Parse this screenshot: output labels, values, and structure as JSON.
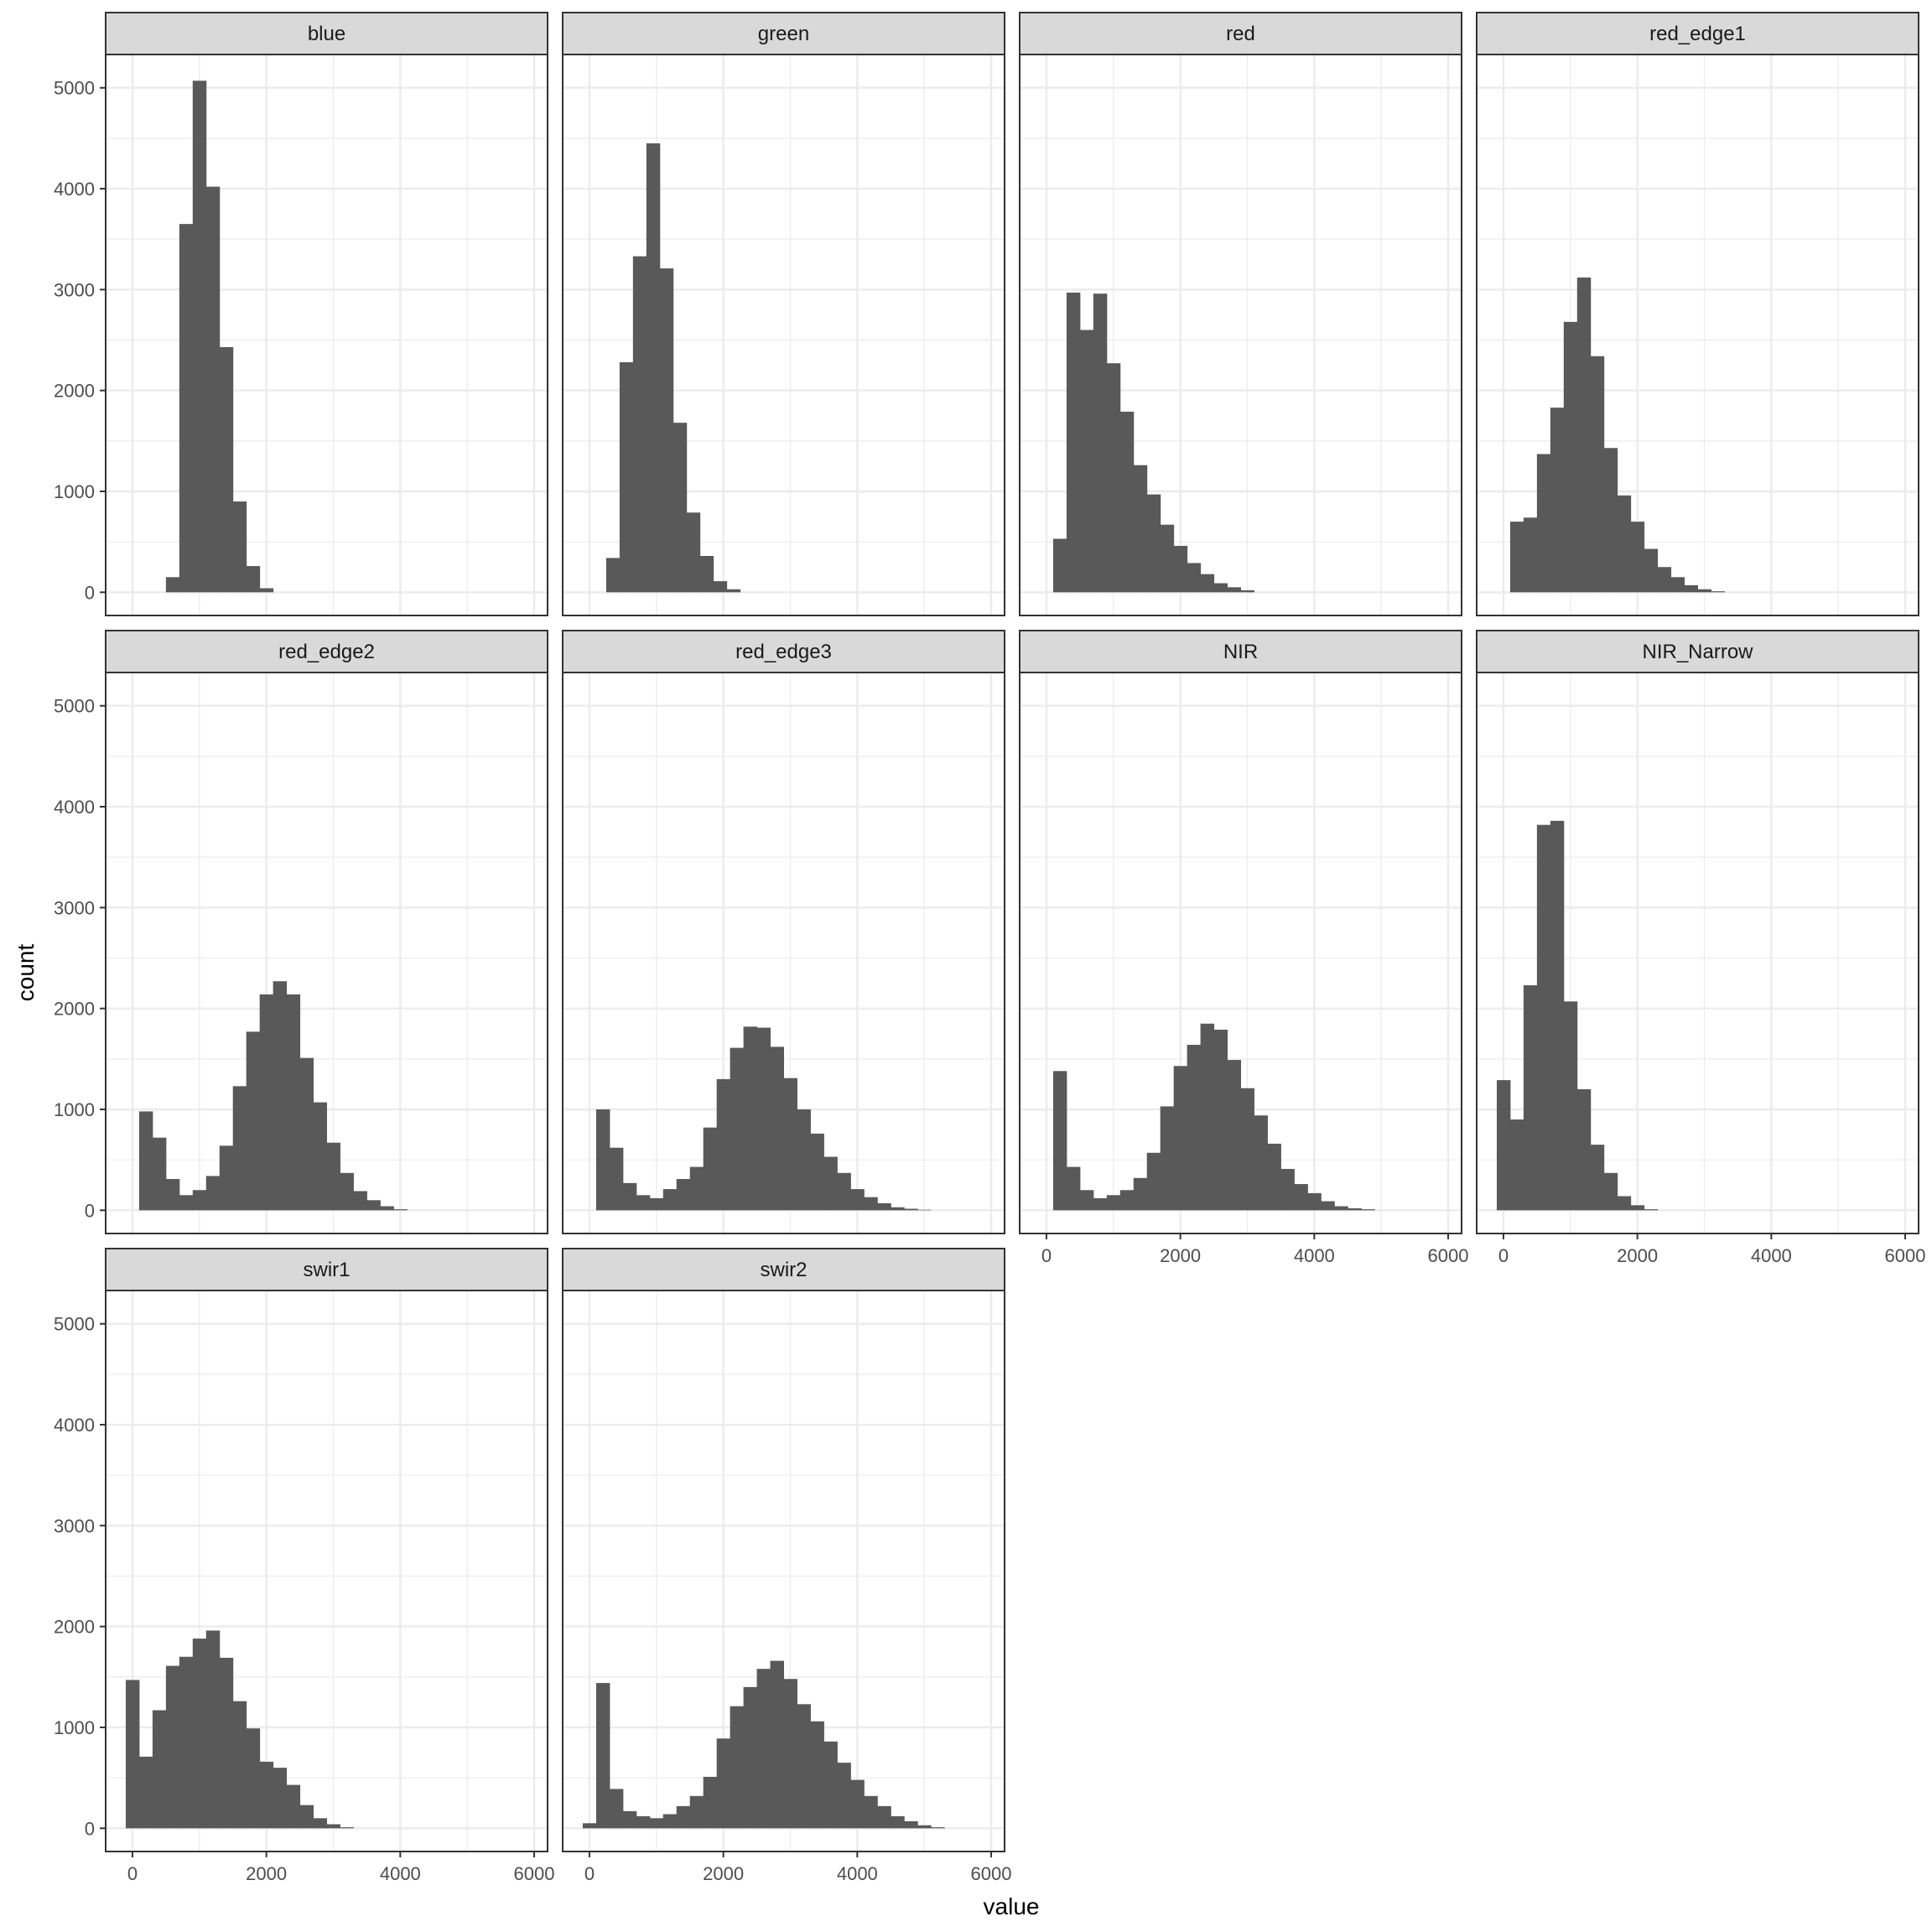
{
  "chart_data": {
    "type": "bar",
    "subtype": "faceted-histogram",
    "title": "",
    "xlabel": "value",
    "ylabel": "count",
    "xlim": [
      -400,
      6200
    ],
    "ylim": [
      -230,
      5330
    ],
    "x_ticks": [
      0,
      2000,
      4000,
      6000
    ],
    "y_ticks": [
      0,
      1000,
      2000,
      3000,
      4000,
      5000
    ],
    "grid": true,
    "bar_color": "#595959",
    "strip_color": "#d9d9d9",
    "panel_border_color": "#333333",
    "grid_color": "#ebebeb",
    "facet_layout": {
      "ncol": 4,
      "nrow": 3
    },
    "facets": [
      {
        "name": "blue",
        "x_start": 500,
        "bin_width": 200,
        "counts": [
          150,
          3650,
          5070,
          4020,
          2430,
          900,
          260,
          40
        ]
      },
      {
        "name": "green",
        "x_start": 250,
        "bin_width": 200,
        "counts": [
          340,
          2280,
          3330,
          4450,
          3210,
          1680,
          790,
          360,
          110,
          30
        ]
      },
      {
        "name": "red",
        "x_start": 100,
        "bin_width": 200,
        "counts": [
          530,
          2970,
          2600,
          2960,
          2270,
          1790,
          1260,
          970,
          670,
          460,
          290,
          180,
          90,
          50,
          20
        ]
      },
      {
        "name": "red_edge1",
        "x_start": 100,
        "bin_width": 200,
        "counts": [
          700,
          740,
          1370,
          1830,
          2680,
          3120,
          2340,
          1430,
          960,
          700,
          430,
          250,
          150,
          70,
          30,
          10
        ]
      },
      {
        "name": "red_edge2",
        "x_start": 100,
        "bin_width": 200,
        "counts": [
          980,
          720,
          310,
          150,
          200,
          340,
          640,
          1230,
          1770,
          2140,
          2270,
          2140,
          1510,
          1070,
          670,
          370,
          190,
          100,
          40,
          10
        ]
      },
      {
        "name": "red_edge3",
        "x_start": 100,
        "bin_width": 200,
        "counts": [
          1000,
          620,
          270,
          150,
          120,
          210,
          310,
          430,
          820,
          1300,
          1610,
          1820,
          1810,
          1620,
          1310,
          1000,
          760,
          530,
          370,
          210,
          130,
          70,
          30,
          15,
          5
        ]
      },
      {
        "name": "NIR",
        "x_start": 100,
        "bin_width": 200,
        "counts": [
          1380,
          430,
          200,
          120,
          150,
          200,
          320,
          570,
          1030,
          1430,
          1640,
          1850,
          1790,
          1490,
          1210,
          940,
          660,
          410,
          260,
          170,
          90,
          40,
          20,
          10
        ]
      },
      {
        "name": "NIR_Narrow",
        "x_start": -100,
        "bin_width": 200,
        "counts": [
          1290,
          900,
          2230,
          3820,
          3860,
          2070,
          1200,
          650,
          370,
          140,
          50,
          10
        ]
      },
      {
        "name": "swir1",
        "x_start": -100,
        "bin_width": 200,
        "counts": [
          1470,
          710,
          1170,
          1610,
          1700,
          1880,
          1960,
          1690,
          1260,
          990,
          660,
          600,
          430,
          230,
          100,
          40,
          10
        ]
      },
      {
        "name": "swir2",
        "x_start": -100,
        "bin_width": 200,
        "counts": [
          50,
          1440,
          390,
          170,
          120,
          100,
          140,
          220,
          320,
          510,
          890,
          1210,
          1400,
          1580,
          1660,
          1480,
          1230,
          1060,
          860,
          650,
          480,
          320,
          220,
          120,
          70,
          30,
          10
        ]
      }
    ]
  }
}
